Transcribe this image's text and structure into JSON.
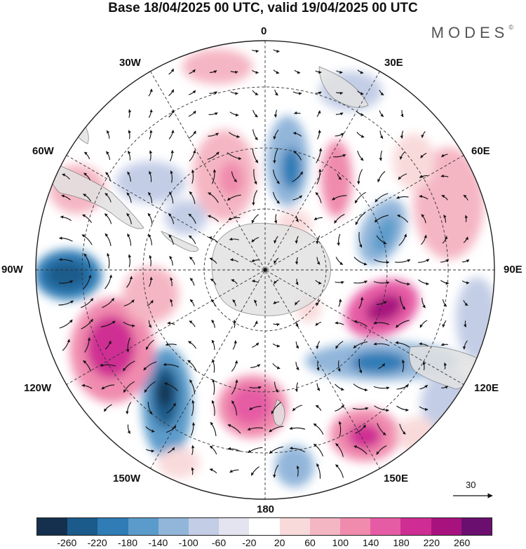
{
  "header": {
    "title": "Base 18/04/2025 00 UTC, valid 19/04/2025 00 UTC",
    "brand": "MODES",
    "brand_mark": "©"
  },
  "map": {
    "projection": "south-polar-stereographic",
    "meridian_labels": {
      "m0": "0",
      "m30e": "30E",
      "m60e": "60E",
      "m90e": "90E",
      "m120e": "120E",
      "m150e": "150E",
      "m180": "180",
      "m150w": "150W",
      "m120w": "120W",
      "m90w": "90W",
      "m60w": "60W",
      "m30w": "30W"
    },
    "vector_scale": {
      "label": "30"
    }
  },
  "colorbar": {
    "colors": [
      "#15304e",
      "#1a5b8b",
      "#2f7cb6",
      "#5b9bcb",
      "#92b6da",
      "#c3cde6",
      "#e4e4f0",
      "#ffffff",
      "#f9dadb",
      "#f5b6c3",
      "#f08bae",
      "#e65ca4",
      "#cf2d93",
      "#a8127f",
      "#6a0f70"
    ],
    "ticks": [
      "-260",
      "-220",
      "-180",
      "-140",
      "-100",
      "-60",
      "-20",
      "20",
      "60",
      "100",
      "140",
      "180",
      "220",
      "260"
    ]
  }
}
